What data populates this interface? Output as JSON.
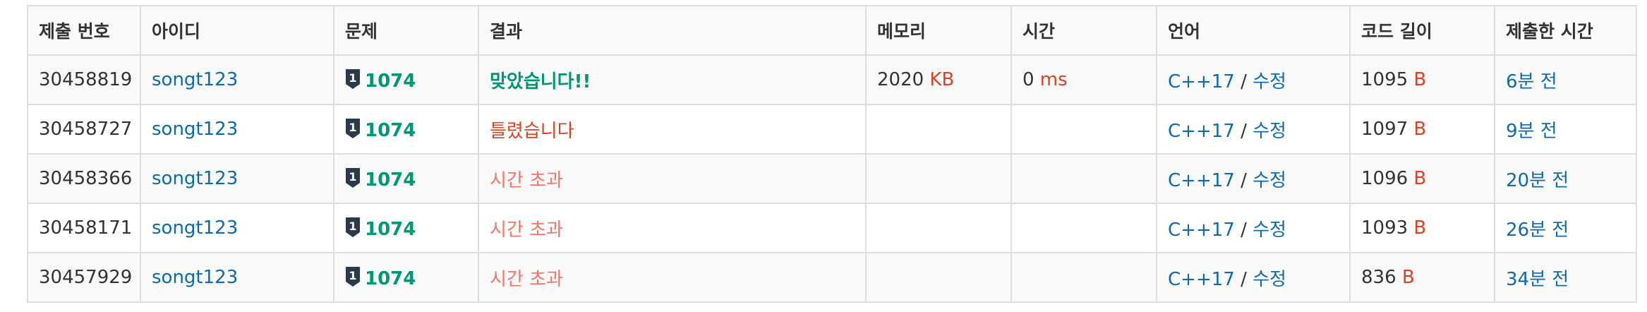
{
  "headers": [
    "제출 번호",
    "아이디",
    "문제",
    "결과",
    "메모리",
    "시간",
    "언어",
    "코드 길이",
    "제출한 시간"
  ],
  "units": {
    "memory": "KB",
    "time": "ms",
    "code": "B"
  },
  "tier_badge": {
    "text": "1",
    "color": "#2a3a4a"
  },
  "edit_label": "수정",
  "lang_sep": "/",
  "rows": [
    {
      "id": "30458819",
      "user": "songt123",
      "problem": "1074",
      "result": "맞았습니다!!",
      "result_type": "ac",
      "memory": "2020",
      "time": "0",
      "lang": "C++17",
      "code": "1095",
      "submitted": "6분 전"
    },
    {
      "id": "30458727",
      "user": "songt123",
      "problem": "1074",
      "result": "틀렸습니다",
      "result_type": "wa",
      "memory": "",
      "time": "",
      "lang": "C++17",
      "code": "1097",
      "submitted": "9분 전"
    },
    {
      "id": "30458366",
      "user": "songt123",
      "problem": "1074",
      "result": "시간 초과",
      "result_type": "tle",
      "memory": "",
      "time": "",
      "lang": "C++17",
      "code": "1096",
      "submitted": "20분 전"
    },
    {
      "id": "30458171",
      "user": "songt123",
      "problem": "1074",
      "result": "시간 초과",
      "result_type": "tle",
      "memory": "",
      "time": "",
      "lang": "C++17",
      "code": "1093",
      "submitted": "26분 전"
    },
    {
      "id": "30457929",
      "user": "songt123",
      "problem": "1074",
      "result": "시간 초과",
      "result_type": "tle",
      "memory": "",
      "time": "",
      "lang": "C++17",
      "code": "836",
      "submitted": "34분 전"
    }
  ]
}
